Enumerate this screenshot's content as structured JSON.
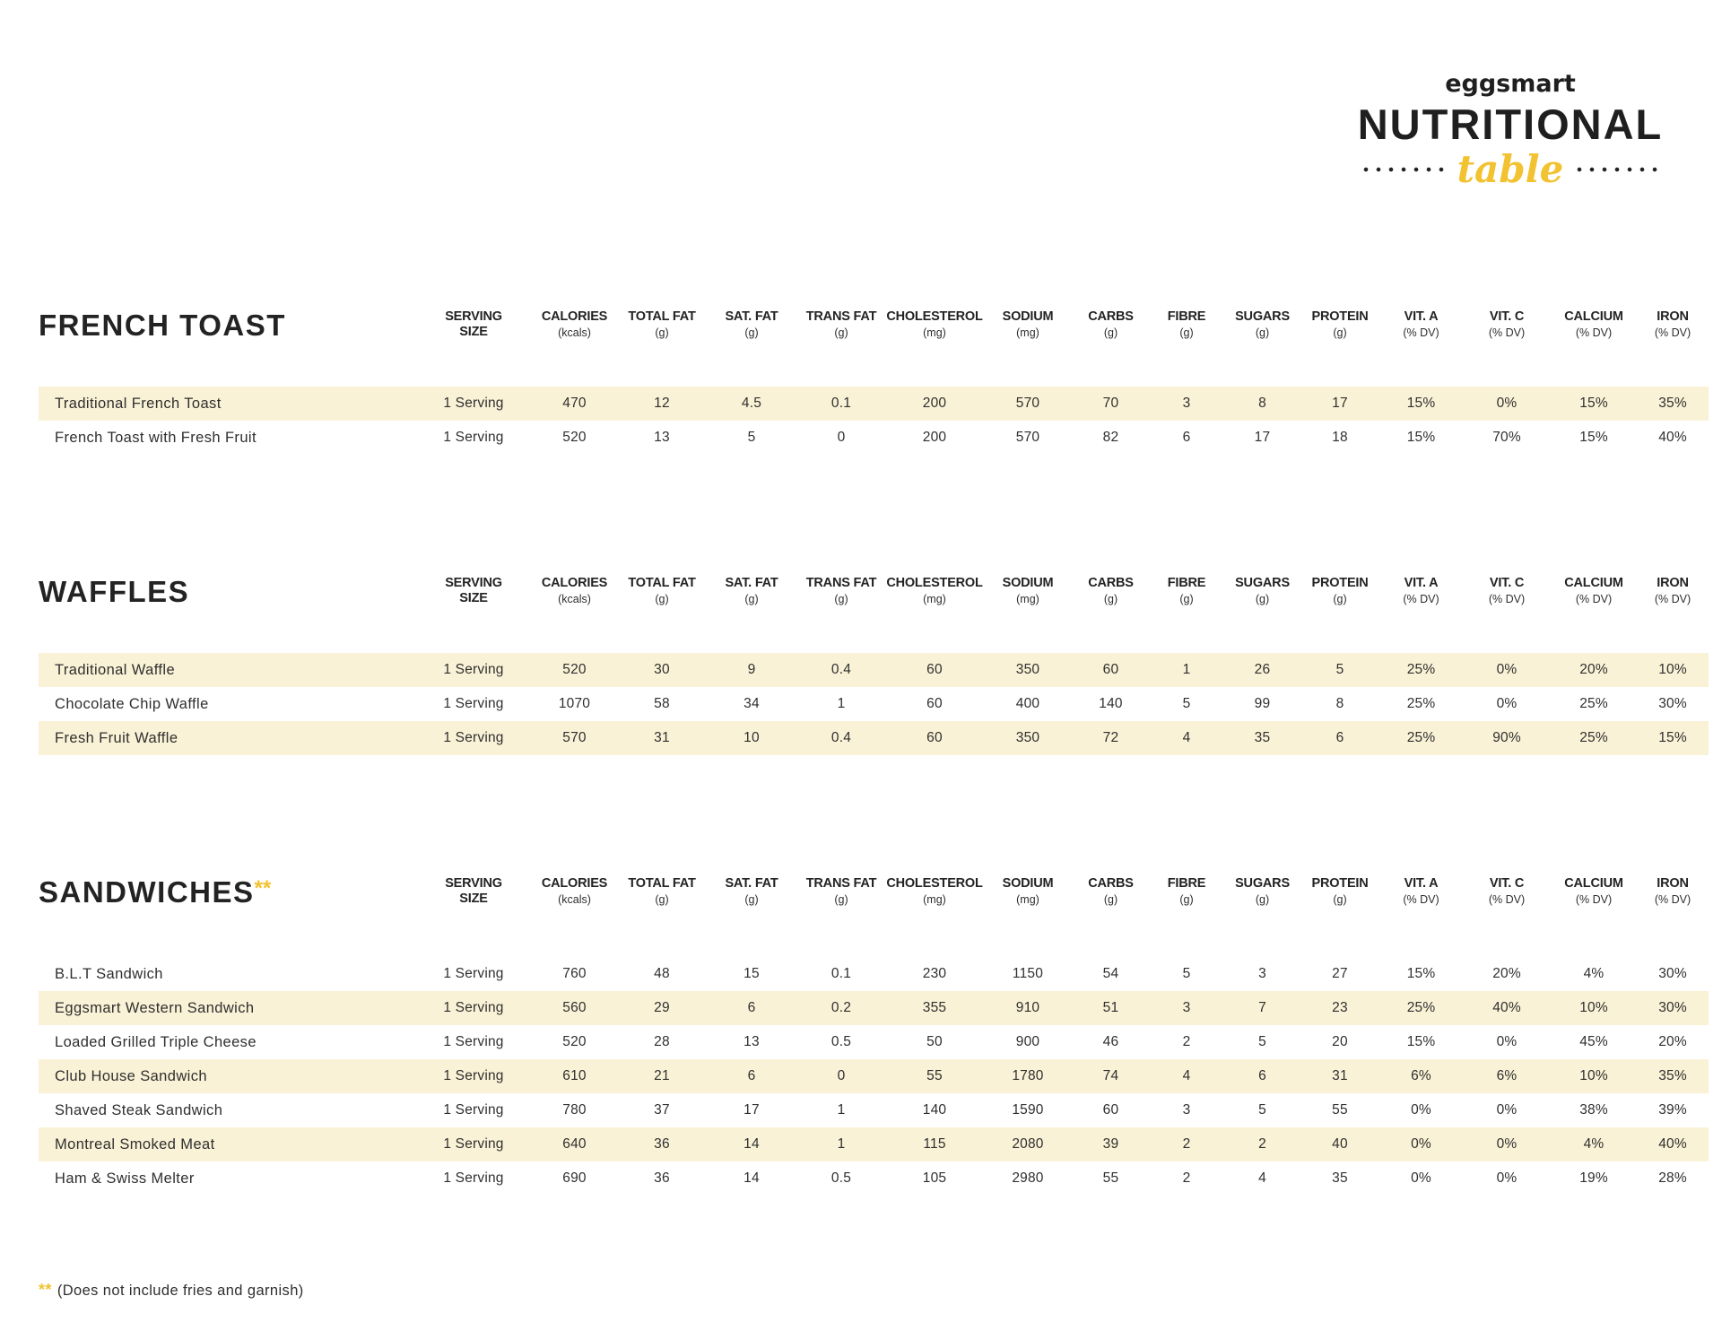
{
  "brand": {
    "name": "eggsmart",
    "title": "NUTRITIONAL",
    "subtitle": "table"
  },
  "columns": [
    {
      "label": "SERVING SIZE",
      "unit": ""
    },
    {
      "label": "CALORIES",
      "unit": "(kcals)"
    },
    {
      "label": "TOTAL FAT",
      "unit": "(g)"
    },
    {
      "label": "SAT. FAT",
      "unit": "(g)"
    },
    {
      "label": "TRANS FAT",
      "unit": "(g)"
    },
    {
      "label": "CHOLESTEROL",
      "unit": "(mg)"
    },
    {
      "label": "SODIUM",
      "unit": "(mg)"
    },
    {
      "label": "CARBS",
      "unit": "(g)"
    },
    {
      "label": "FIBRE",
      "unit": "(g)"
    },
    {
      "label": "SUGARS",
      "unit": "(g)"
    },
    {
      "label": "PROTEIN",
      "unit": "(g)"
    },
    {
      "label": "VIT. A",
      "unit": "(% DV)"
    },
    {
      "label": "VIT. C",
      "unit": "(% DV)"
    },
    {
      "label": "CALCIUM",
      "unit": "(% DV)"
    },
    {
      "label": "IRON",
      "unit": "(% DV)"
    }
  ],
  "sections": [
    {
      "title": "FRENCH TOAST",
      "title_marker": "",
      "rows": [
        {
          "name": "Traditional French Toast",
          "serving": "1 Serving",
          "shaded": true,
          "values": [
            "470",
            "12",
            "4.5",
            "0.1",
            "200",
            "570",
            "70",
            "3",
            "8",
            "17",
            "15%",
            "0%",
            "15%",
            "35%"
          ]
        },
        {
          "name": "French Toast with Fresh Fruit",
          "serving": "1 Serving",
          "shaded": false,
          "values": [
            "520",
            "13",
            "5",
            "0",
            "200",
            "570",
            "82",
            "6",
            "17",
            "18",
            "15%",
            "70%",
            "15%",
            "40%"
          ]
        }
      ]
    },
    {
      "title": "WAFFLES",
      "title_marker": "",
      "rows": [
        {
          "name": "Traditional Waffle",
          "serving": "1 Serving",
          "shaded": true,
          "values": [
            "520",
            "30",
            "9",
            "0.4",
            "60",
            "350",
            "60",
            "1",
            "26",
            "5",
            "25%",
            "0%",
            "20%",
            "10%"
          ]
        },
        {
          "name": "Chocolate Chip Waffle",
          "serving": "1 Serving",
          "shaded": false,
          "values": [
            "1070",
            "58",
            "34",
            "1",
            "60",
            "400",
            "140",
            "5",
            "99",
            "8",
            "25%",
            "0%",
            "25%",
            "30%"
          ]
        },
        {
          "name": "Fresh Fruit Waffle",
          "serving": "1 Serving",
          "shaded": true,
          "values": [
            "570",
            "31",
            "10",
            "0.4",
            "60",
            "350",
            "72",
            "4",
            "35",
            "6",
            "25%",
            "90%",
            "25%",
            "15%"
          ]
        }
      ]
    },
    {
      "title": "SANDWICHES",
      "title_marker": "**",
      "rows": [
        {
          "name": "B.L.T Sandwich",
          "serving": "1 Serving",
          "shaded": false,
          "values": [
            "760",
            "48",
            "15",
            "0.1",
            "230",
            "1150",
            "54",
            "5",
            "3",
            "27",
            "15%",
            "20%",
            "4%",
            "30%"
          ]
        },
        {
          "name": "Eggsmart Western Sandwich",
          "serving": "1 Serving",
          "shaded": true,
          "values": [
            "560",
            "29",
            "6",
            "0.2",
            "355",
            "910",
            "51",
            "3",
            "7",
            "23",
            "25%",
            "40%",
            "10%",
            "30%"
          ]
        },
        {
          "name": "Loaded Grilled Triple Cheese",
          "serving": "1 Serving",
          "shaded": false,
          "values": [
            "520",
            "28",
            "13",
            "0.5",
            "50",
            "900",
            "46",
            "2",
            "5",
            "20",
            "15%",
            "0%",
            "45%",
            "20%"
          ]
        },
        {
          "name": "Club House Sandwich",
          "serving": "1 Serving",
          "shaded": true,
          "values": [
            "610",
            "21",
            "6",
            "0",
            "55",
            "1780",
            "74",
            "4",
            "6",
            "31",
            "6%",
            "6%",
            "10%",
            "35%"
          ]
        },
        {
          "name": "Shaved Steak Sandwich",
          "serving": "1 Serving",
          "shaded": false,
          "values": [
            "780",
            "37",
            "17",
            "1",
            "140",
            "1590",
            "60",
            "3",
            "5",
            "55",
            "0%",
            "0%",
            "38%",
            "39%"
          ]
        },
        {
          "name": "Montreal Smoked Meat",
          "serving": "1 Serving",
          "shaded": true,
          "values": [
            "640",
            "36",
            "14",
            "1",
            "115",
            "2080",
            "39",
            "2",
            "2",
            "40",
            "0%",
            "0%",
            "4%",
            "40%"
          ]
        },
        {
          "name": "Ham & Swiss Melter",
          "serving": "1 Serving",
          "shaded": false,
          "values": [
            "690",
            "36",
            "14",
            "0.5",
            "105",
            "2980",
            "55",
            "2",
            "4",
            "35",
            "0%",
            "0%",
            "19%",
            "28%"
          ]
        }
      ]
    }
  ],
  "footnote": {
    "marker": "**",
    "text": "(Does not include fries and garnish)"
  },
  "colors": {
    "accent_yellow": "#F2C230",
    "row_highlight": "#FAF2D6",
    "heading_dark": "#232323"
  }
}
